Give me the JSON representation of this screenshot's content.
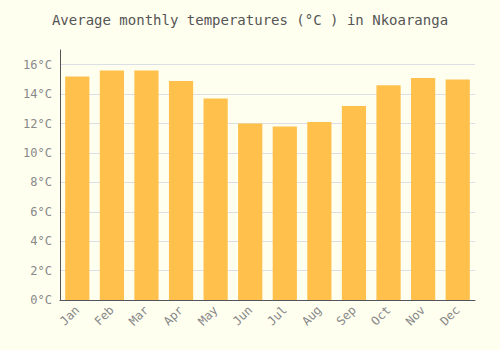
{
  "chart_data": {
    "type": "bar",
    "title": "Average monthly temperatures (°C ) in Nkoaranga",
    "categories": [
      "Jan",
      "Feb",
      "Mar",
      "Apr",
      "May",
      "Jun",
      "Jul",
      "Aug",
      "Sep",
      "Oct",
      "Nov",
      "Dec"
    ],
    "values": [
      15.2,
      15.6,
      15.6,
      14.9,
      13.7,
      12.0,
      11.8,
      12.1,
      13.2,
      14.6,
      15.1,
      15.0
    ],
    "color": "#FFC04C",
    "ylim": [
      0,
      17
    ],
    "yticks": [
      {
        "value": 0,
        "label": "0°C"
      },
      {
        "value": 2,
        "label": "2°C"
      },
      {
        "value": 4,
        "label": "4°C"
      },
      {
        "value": 6,
        "label": "6°C"
      },
      {
        "value": 8,
        "label": "8°C"
      },
      {
        "value": 10,
        "label": "10°C"
      },
      {
        "value": 12,
        "label": "12°C"
      },
      {
        "value": 14,
        "label": "14°C"
      },
      {
        "value": 16,
        "label": "16°C"
      }
    ],
    "grid": true
  }
}
